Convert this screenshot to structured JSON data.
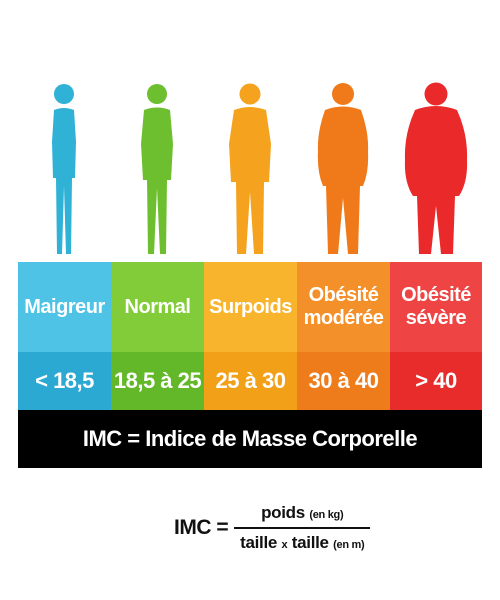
{
  "categories": [
    {
      "name": "Maigreur",
      "range": "< 18,5",
      "color": "#2fb2d6",
      "figure": "slim-person-icon"
    },
    {
      "name": "Normal",
      "range": "18,5 à 25",
      "color": "#6dbf2f",
      "figure": "normal-person-icon"
    },
    {
      "name": "Surpoids",
      "range": "25 à 30",
      "color": "#f5a21e",
      "figure": "overweight-person-icon"
    },
    {
      "name": "Obésité\nmodérée",
      "range": "30 à 40",
      "color": "#f07a1a",
      "figure": "obese-person-icon"
    },
    {
      "name": "Obésité\nsévère",
      "range": "> 40",
      "color": "#ea2a2a",
      "figure": "severely-obese-person-icon"
    }
  ],
  "colors": {
    "name_row": [
      "#4fc3e6",
      "#82cc3a",
      "#f8b42c",
      "#f4902a",
      "#ee4444"
    ],
    "range_row": [
      "#2ba9d3",
      "#63b82a",
      "#f3a019",
      "#ef7c1b",
      "#e82c2c"
    ],
    "banner": "#000000"
  },
  "banner": {
    "text": "IMC = Indice de Masse Corporelle"
  },
  "formula": {
    "lhs": "IMC =",
    "numerator": "poids",
    "numerator_unit": "(en kg)",
    "denominator": "taille",
    "times": "x",
    "denominator2": "taille",
    "denominator_unit": "(en m)"
  }
}
